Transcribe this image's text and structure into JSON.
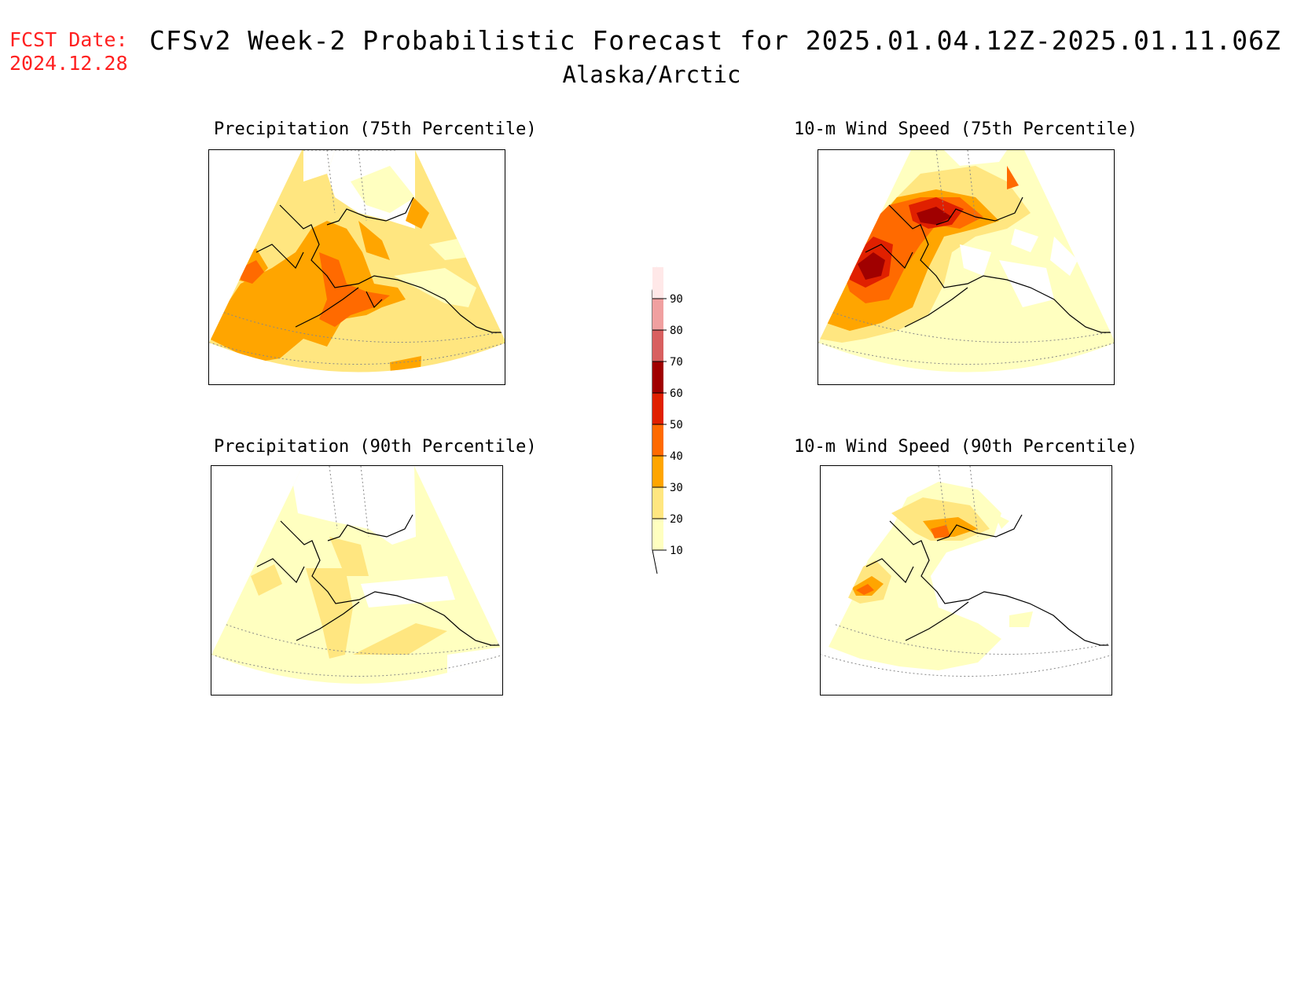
{
  "header": {
    "fcst_label": "FCST Date:",
    "fcst_date": "2024.12.28",
    "title": "CFSv2 Week-2 Probabilistic Forecast for 2025.01.04.12Z-2025.01.11.06Z",
    "region": "Alaska/Arctic"
  },
  "panels": [
    {
      "id": "precip75",
      "title": "Precipitation (75th Percentile)"
    },
    {
      "id": "wind75",
      "title": "10-m Wind Speed (75th Percentile)"
    },
    {
      "id": "precip90",
      "title": "Precipitation (90th Percentile)"
    },
    {
      "id": "wind90",
      "title": "10-m Wind Speed (90th Percentile)"
    }
  ],
  "colorbar": {
    "levels": [
      "10",
      "20",
      "30",
      "40",
      "50",
      "60",
      "70",
      "80",
      "90"
    ],
    "colors": [
      "#ffffc0",
      "#ffe680",
      "#ffa500",
      "#ff6a00",
      "#e02000",
      "#a00000",
      "#d86060",
      "#f0a0a0",
      "#ffe8e8"
    ]
  }
}
